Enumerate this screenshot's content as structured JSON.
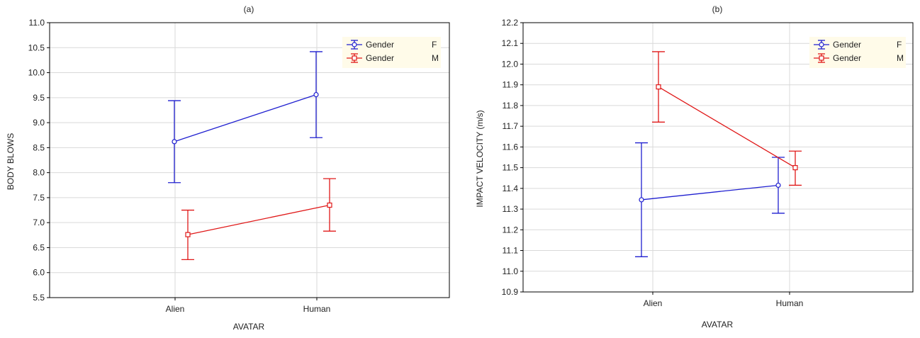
{
  "chart_data": [
    {
      "type": "line",
      "title": "(a)",
      "xlabel": "AVATAR",
      "ylabel": "BODY BLOWS",
      "categories": [
        "Alien",
        "Human"
      ],
      "ylim": [
        5.5,
        11.0
      ],
      "yticks": [
        "5.5",
        "6.0",
        "6.5",
        "7.0",
        "7.5",
        "8.0",
        "8.5",
        "9.0",
        "9.5",
        "10.0",
        "10.5",
        "11.0"
      ],
      "grid": true,
      "legend_position": "top-right",
      "series": [
        {
          "name": "Gender",
          "level": "F",
          "color": "#1f1fd0",
          "marker": "circle",
          "values": [
            8.62,
            9.56
          ],
          "lower": [
            7.8,
            8.7
          ],
          "upper": [
            9.44,
            10.42
          ]
        },
        {
          "name": "Gender",
          "level": "M",
          "color": "#e01818",
          "marker": "square",
          "values": [
            6.76,
            7.35
          ],
          "lower": [
            6.26,
            6.83
          ],
          "upper": [
            7.25,
            7.88
          ]
        }
      ]
    },
    {
      "type": "line",
      "title": "(b)",
      "xlabel": "AVATAR",
      "ylabel": "IMPACT VELOCITY (m/s)",
      "categories": [
        "Alien",
        "Human"
      ],
      "ylim": [
        10.9,
        12.2
      ],
      "yticks": [
        "10.9",
        "11.0",
        "11.1",
        "11.2",
        "11.3",
        "11.4",
        "11.5",
        "11.6",
        "11.7",
        "11.8",
        "11.9",
        "12.0",
        "12.1",
        "12.2"
      ],
      "grid": true,
      "legend_position": "top-right",
      "series": [
        {
          "name": "Gender",
          "level": "F",
          "color": "#1f1fd0",
          "marker": "circle",
          "values": [
            11.345,
            11.415
          ],
          "lower": [
            11.07,
            11.28
          ],
          "upper": [
            11.62,
            11.55
          ]
        },
        {
          "name": "Gender",
          "level": "M",
          "color": "#e01818",
          "marker": "square",
          "values": [
            11.89,
            11.5
          ],
          "lower": [
            11.72,
            11.415
          ],
          "upper": [
            12.06,
            11.58
          ]
        }
      ]
    }
  ]
}
